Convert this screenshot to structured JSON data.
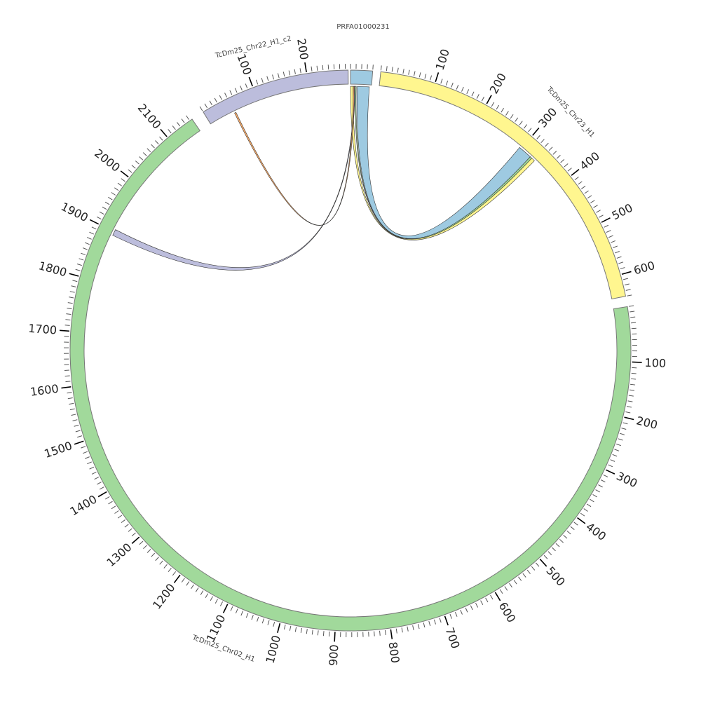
{
  "diagram": {
    "type": "circos",
    "unit_degrees": 0.1135,
    "minor_tick_every": 10,
    "segments": [
      {
        "name": "PRFA01000231",
        "start_deg": 0.0,
        "length": 40,
        "color": "#9ecae1",
        "tick_labels": []
      },
      {
        "name": "TcDm25_Chr23_H1",
        "start_deg": 6.2,
        "length": 640,
        "color": "#fff68f",
        "tick_labels": [
          "100",
          "200",
          "300",
          "400",
          "500",
          "600"
        ]
      },
      {
        "name": "TcDm25_Chr02_H1",
        "start_deg": 81.0,
        "length": 2155,
        "color": "#a1d99b",
        "tick_labels": [
          "100",
          "200",
          "300",
          "400",
          "500",
          "600",
          "700",
          "800",
          "900",
          "1000",
          "1100",
          "1200",
          "1300",
          "1400",
          "1500",
          "1600",
          "1700",
          "1800",
          "1900",
          "2000",
          "2100"
        ]
      },
      {
        "name": "TcDm25_Chr22_H1_c2",
        "start_deg": 328.3,
        "length": 275,
        "color": "#bcbddc",
        "tick_labels": [
          "100",
          "200"
        ]
      }
    ],
    "links": [
      {
        "from": "PRFA01000231",
        "from_range": [
          13,
          36
        ],
        "to": "TcDm25_Chr23_H1",
        "to_range": [
          296,
          323
        ],
        "color": "#9ecae1"
      },
      {
        "from": "PRFA01000231",
        "from_range": [
          9,
          11
        ],
        "to": "TcDm25_Chr23_H1",
        "to_range": [
          323,
          327
        ],
        "color": "#a1d99b"
      },
      {
        "from": "PRFA01000231",
        "from_range": [
          0,
          5
        ],
        "to": "TcDm25_Chr23_H1",
        "to_range": [
          327,
          334
        ],
        "color": "#fff68f"
      },
      {
        "from": "PRFA01000231",
        "from_range": [
          7.5,
          9
        ],
        "to": "TcDm25_Chr02_H1",
        "to_range": [
          1893,
          1905
        ],
        "color": "#bcbddc"
      },
      {
        "from": "PRFA01000231",
        "from_range": [
          5.5,
          7.5
        ],
        "to": "TcDm25_Chr22_H1_c2",
        "to_range": [
          50,
          53
        ],
        "color": "#fdae6b"
      }
    ]
  }
}
